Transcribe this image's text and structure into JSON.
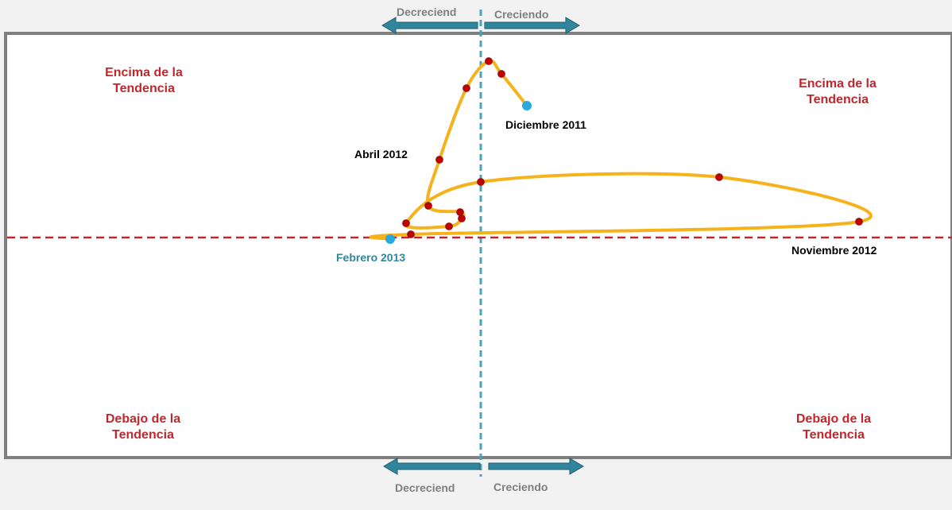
{
  "quadrants": {
    "top_left": "Encima de la Tendencia",
    "top_right": "Encima de la Tendencia",
    "bottom_left": "Debajo de la Tendencia",
    "bottom_right": "Debajo de la Tendencia"
  },
  "direction_labels": {
    "top_left": "Decreciend",
    "top_right": "Creciendo",
    "bottom_left": "Decreciend",
    "bottom_right": "Creciendo"
  },
  "colors": {
    "frame": "#7f7f7f",
    "panel": "#ffffff",
    "page": "#f2f2f2",
    "arrow": "#31859c",
    "vertical_axis": "#4aa3b8",
    "horizontal_axis": "#c0272d",
    "path": "#f5b21b",
    "point": "#c00000",
    "endpoint": "#29a9e0",
    "quadrant_text": "#c0272d",
    "direction_text": "#7f7f7f"
  },
  "chart_data": {
    "type": "scatter",
    "title": "",
    "xlabel": "",
    "ylabel": "",
    "xlim": [
      -300,
      300
    ],
    "ylim": [
      -140,
      140
    ],
    "connected": true,
    "grid": false,
    "annotations": [
      {
        "text": "Diciembre 2011",
        "point": 0,
        "color": "#000000"
      },
      {
        "text": "Abril 2012",
        "point": 5,
        "color": "#000000"
      },
      {
        "text": "Noviembre 2012",
        "point": 12,
        "color": "#000000"
      },
      {
        "text": "Febrero 2013",
        "point": 14,
        "color": "#31859c"
      }
    ],
    "points": [
      {
        "x": 29,
        "y": 83,
        "kind": "end"
      },
      {
        "x": 13,
        "y": 103,
        "kind": "mid"
      },
      {
        "x": 5,
        "y": 111,
        "kind": "mid"
      },
      {
        "x": -9,
        "y": 94,
        "kind": "mid"
      },
      {
        "x": -26,
        "y": 49,
        "kind": "mid"
      },
      {
        "x": -33,
        "y": 20,
        "kind": "mid"
      },
      {
        "x": -13,
        "y": 16,
        "kind": "mid"
      },
      {
        "x": -12,
        "y": 12,
        "kind": "mid"
      },
      {
        "x": -20,
        "y": 7,
        "kind": "mid"
      },
      {
        "x": -47,
        "y": 9,
        "kind": "mid"
      },
      {
        "x": 0,
        "y": 35,
        "kind": "mid"
      },
      {
        "x": 150,
        "y": 38,
        "kind": "mid"
      },
      {
        "x": 238,
        "y": 10,
        "kind": "mid"
      },
      {
        "x": -44,
        "y": 2,
        "kind": "mid"
      },
      {
        "x": -57,
        "y": -1,
        "kind": "end"
      }
    ]
  }
}
